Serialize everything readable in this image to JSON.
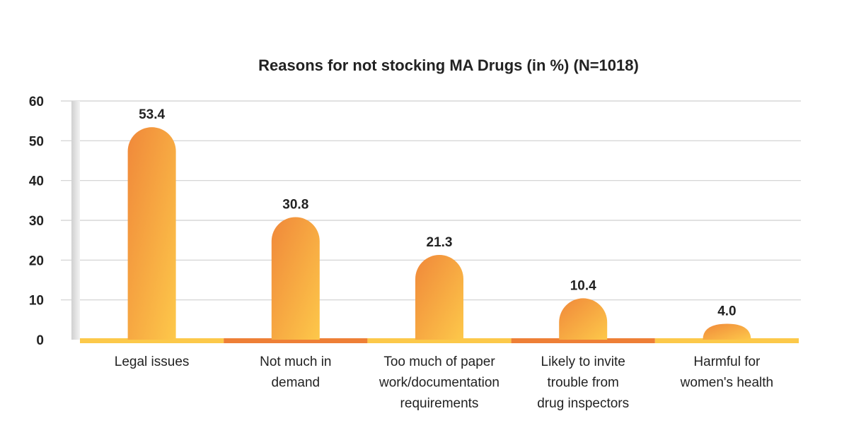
{
  "chart_data": {
    "type": "bar",
    "title": "Reasons for not stocking MA Drugs (in %) (N=1018)",
    "xlabel": "",
    "ylabel": "",
    "ylim": [
      0,
      60
    ],
    "yticks": [
      0,
      10,
      20,
      30,
      40,
      50,
      60
    ],
    "grid": true,
    "legend": "none",
    "categories": [
      "Legal issues",
      "Not much in demand",
      "Too much of paper work/documentation requirements",
      "Likely to invite trouble from drug inspectors",
      "Harmful for women's health"
    ],
    "category_lines": [
      [
        "Legal issues"
      ],
      [
        "Not much in",
        "demand"
      ],
      [
        "Too much of paper",
        "work/documentation",
        "requirements"
      ],
      [
        "Likely to invite",
        "trouble from",
        "drug inspectors"
      ],
      [
        "Harmful for",
        "women's health"
      ]
    ],
    "values": [
      53.4,
      30.8,
      21.3,
      10.4,
      4.0
    ],
    "value_labels": [
      "53.4",
      "30.8",
      "21.3",
      "10.4",
      "4.0"
    ],
    "colors": {
      "bar_light": "#fdc84a",
      "bar_dark": "#f0883a",
      "base_yellow": "#fcc94a",
      "base_orange": "#ee7f36",
      "grid": "#cfcfcf",
      "axis_shadow": "#dcdcdc"
    }
  }
}
